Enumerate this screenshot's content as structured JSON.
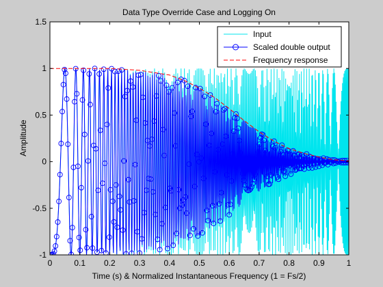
{
  "chart_data": {
    "type": "line",
    "title": "Data Type Override Case and Logging On",
    "xlabel": "Time (s) & Normalized Instantaneous Frequency (1 = Fs/2)",
    "ylabel": "Amplitude",
    "xlim": [
      0,
      1
    ],
    "ylim": [
      -1,
      1.5
    ],
    "x_ticks": [
      "0",
      "0.1",
      "0.2",
      "0.3",
      "0.4",
      "0.5",
      "0.6",
      "0.7",
      "0.8",
      "0.9",
      "1"
    ],
    "y_ticks": [
      "-1",
      "-0.5",
      "0",
      "0.5",
      "1",
      "1.5"
    ],
    "grid": false,
    "legend_position": "top-right",
    "series": [
      {
        "name": "Input",
        "color": "#00e5ee",
        "style": "solid",
        "description_values": "linear chirp, amplitude 1, frequency sweeping 0 to Fs/2 over t = 0..1",
        "points": 800
      },
      {
        "name": "Scaled double output",
        "color": "#0000ff",
        "style": "solid-with-circle-markers",
        "envelope": {
          "x": [
            0,
            0.06,
            0.2,
            0.3,
            0.4,
            0.45,
            0.5,
            0.55,
            0.6,
            0.65,
            0.7,
            0.75,
            0.8,
            0.85,
            0.9,
            0.95,
            1.0
          ],
          "y": [
            1.0,
            1.0,
            1.0,
            0.98,
            0.93,
            0.87,
            0.79,
            0.69,
            0.57,
            0.44,
            0.32,
            0.22,
            0.14,
            0.09,
            0.05,
            0.02,
            0.01
          ]
        }
      },
      {
        "name": "Frequency response",
        "color": "#ff0000",
        "style": "dashed",
        "x": [
          0,
          0.2,
          0.3,
          0.4,
          0.45,
          0.5,
          0.55,
          0.6,
          0.65,
          0.7,
          0.75,
          0.8,
          0.85,
          0.9,
          0.95,
          1.0
        ],
        "y": [
          1.0,
          1.0,
          0.98,
          0.93,
          0.87,
          0.79,
          0.69,
          0.57,
          0.44,
          0.32,
          0.22,
          0.14,
          0.09,
          0.05,
          0.02,
          0.01
        ]
      }
    ]
  }
}
